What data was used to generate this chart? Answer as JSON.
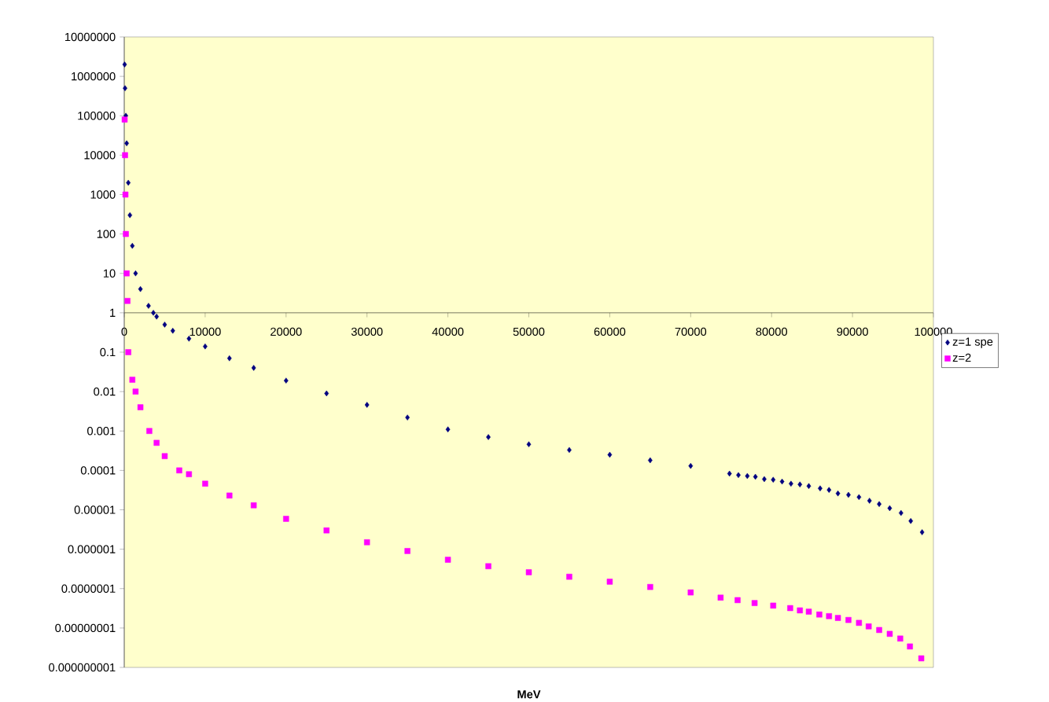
{
  "chart_data": {
    "type": "scatter",
    "xlabel": "MeV",
    "log": "y",
    "legend": "right",
    "xlim": [
      0,
      100000
    ],
    "xticks": [
      0,
      10000,
      20000,
      30000,
      40000,
      50000,
      60000,
      70000,
      80000,
      90000,
      100000
    ],
    "ylim": [
      1e-09,
      10000000.0
    ],
    "yticks": [
      {
        "value": 10000000.0,
        "label": "10000000"
      },
      {
        "value": 1000000.0,
        "label": "1000000"
      },
      {
        "value": 100000.0,
        "label": "100000"
      },
      {
        "value": 10000.0,
        "label": "10000"
      },
      {
        "value": 1000.0,
        "label": "1000"
      },
      {
        "value": 100,
        "label": "100"
      },
      {
        "value": 10,
        "label": "10"
      },
      {
        "value": 1,
        "label": "1"
      },
      {
        "value": 0.1,
        "label": "0.1"
      },
      {
        "value": 0.01,
        "label": "0.01"
      },
      {
        "value": 0.001,
        "label": "0.001"
      },
      {
        "value": 0.0001,
        "label": "0.0001"
      },
      {
        "value": 1e-05,
        "label": "0.00001"
      },
      {
        "value": 1e-06,
        "label": "0.000001"
      },
      {
        "value": 1e-07,
        "label": "0.0000001"
      },
      {
        "value": 1e-08,
        "label": "0.00000001"
      },
      {
        "value": 1e-09,
        "label": "0.000000001"
      }
    ],
    "series": [
      {
        "name": "z=1 spe",
        "color": "#000080",
        "marker": "diamond",
        "x": [
          50,
          100,
          200,
          300,
          500,
          700,
          1000,
          1400,
          2000,
          3000,
          3600,
          4000,
          5000,
          6000,
          8000,
          10000,
          13000,
          16000,
          20000,
          25000,
          30000,
          35000,
          40000,
          45000,
          50000,
          55000,
          60000,
          65000,
          70000,
          74800,
          75900,
          77000,
          78000,
          79100,
          80200,
          81300,
          82400,
          83500,
          84600,
          86000,
          87100,
          88200,
          89500,
          90800,
          92100,
          93300,
          94600,
          96000,
          97200,
          98600
        ],
        "values": [
          2000000.0,
          500000.0,
          100000.0,
          20000.0,
          2000,
          300,
          50,
          10,
          4,
          1.5,
          1,
          0.8,
          0.5,
          0.35,
          0.22,
          0.14,
          0.07,
          0.04,
          0.019,
          0.009,
          0.0046,
          0.0022,
          0.0011,
          0.0007,
          0.00046,
          0.00033,
          0.00025,
          0.00018,
          0.00013,
          8.3e-05,
          7.6e-05,
          7.2e-05,
          6.9e-05,
          6e-05,
          5.8e-05,
          5.2e-05,
          4.6e-05,
          4.4e-05,
          4e-05,
          3.5e-05,
          3.2e-05,
          2.6e-05,
          2.4e-05,
          2.1e-05,
          1.7e-05,
          1.4e-05,
          1.1e-05,
          8.3e-06,
          5.2e-06,
          2.7e-06
        ]
      },
      {
        "name": "z=2",
        "color": "#ff00ff",
        "marker": "square",
        "x": [
          50,
          100,
          150,
          200,
          300,
          400,
          500,
          1000,
          1400,
          2000,
          3100,
          4000,
          5000,
          6800,
          8000,
          10000,
          13000,
          16000,
          20000,
          25000,
          30000,
          35000,
          40000,
          45000,
          50000,
          55000,
          60000,
          65000,
          70000,
          73700,
          75800,
          77900,
          80200,
          82300,
          83500,
          84600,
          85900,
          87100,
          88200,
          89500,
          90800,
          92000,
          93300,
          94600,
          95900,
          97100,
          98500
        ],
        "values": [
          80000.0,
          10000.0,
          1000,
          100,
          10,
          2,
          0.1,
          0.02,
          0.01,
          0.004,
          0.001,
          0.0005,
          0.00023,
          0.0001,
          8e-05,
          4.6e-05,
          2.3e-05,
          1.3e-05,
          5.9e-06,
          3e-06,
          1.5e-06,
          9e-07,
          5.4e-07,
          3.7e-07,
          2.6e-07,
          2e-07,
          1.5e-07,
          1.1e-07,
          8e-08,
          5.9e-08,
          5.1e-08,
          4.3e-08,
          3.7e-08,
          3.2e-08,
          2.8e-08,
          2.6e-08,
          2.2e-08,
          2e-08,
          1.8e-08,
          1.6e-08,
          1.35e-08,
          1.1e-08,
          8.9e-09,
          7.1e-09,
          5.4e-09,
          3.4e-09,
          1.7e-09
        ]
      }
    ]
  }
}
